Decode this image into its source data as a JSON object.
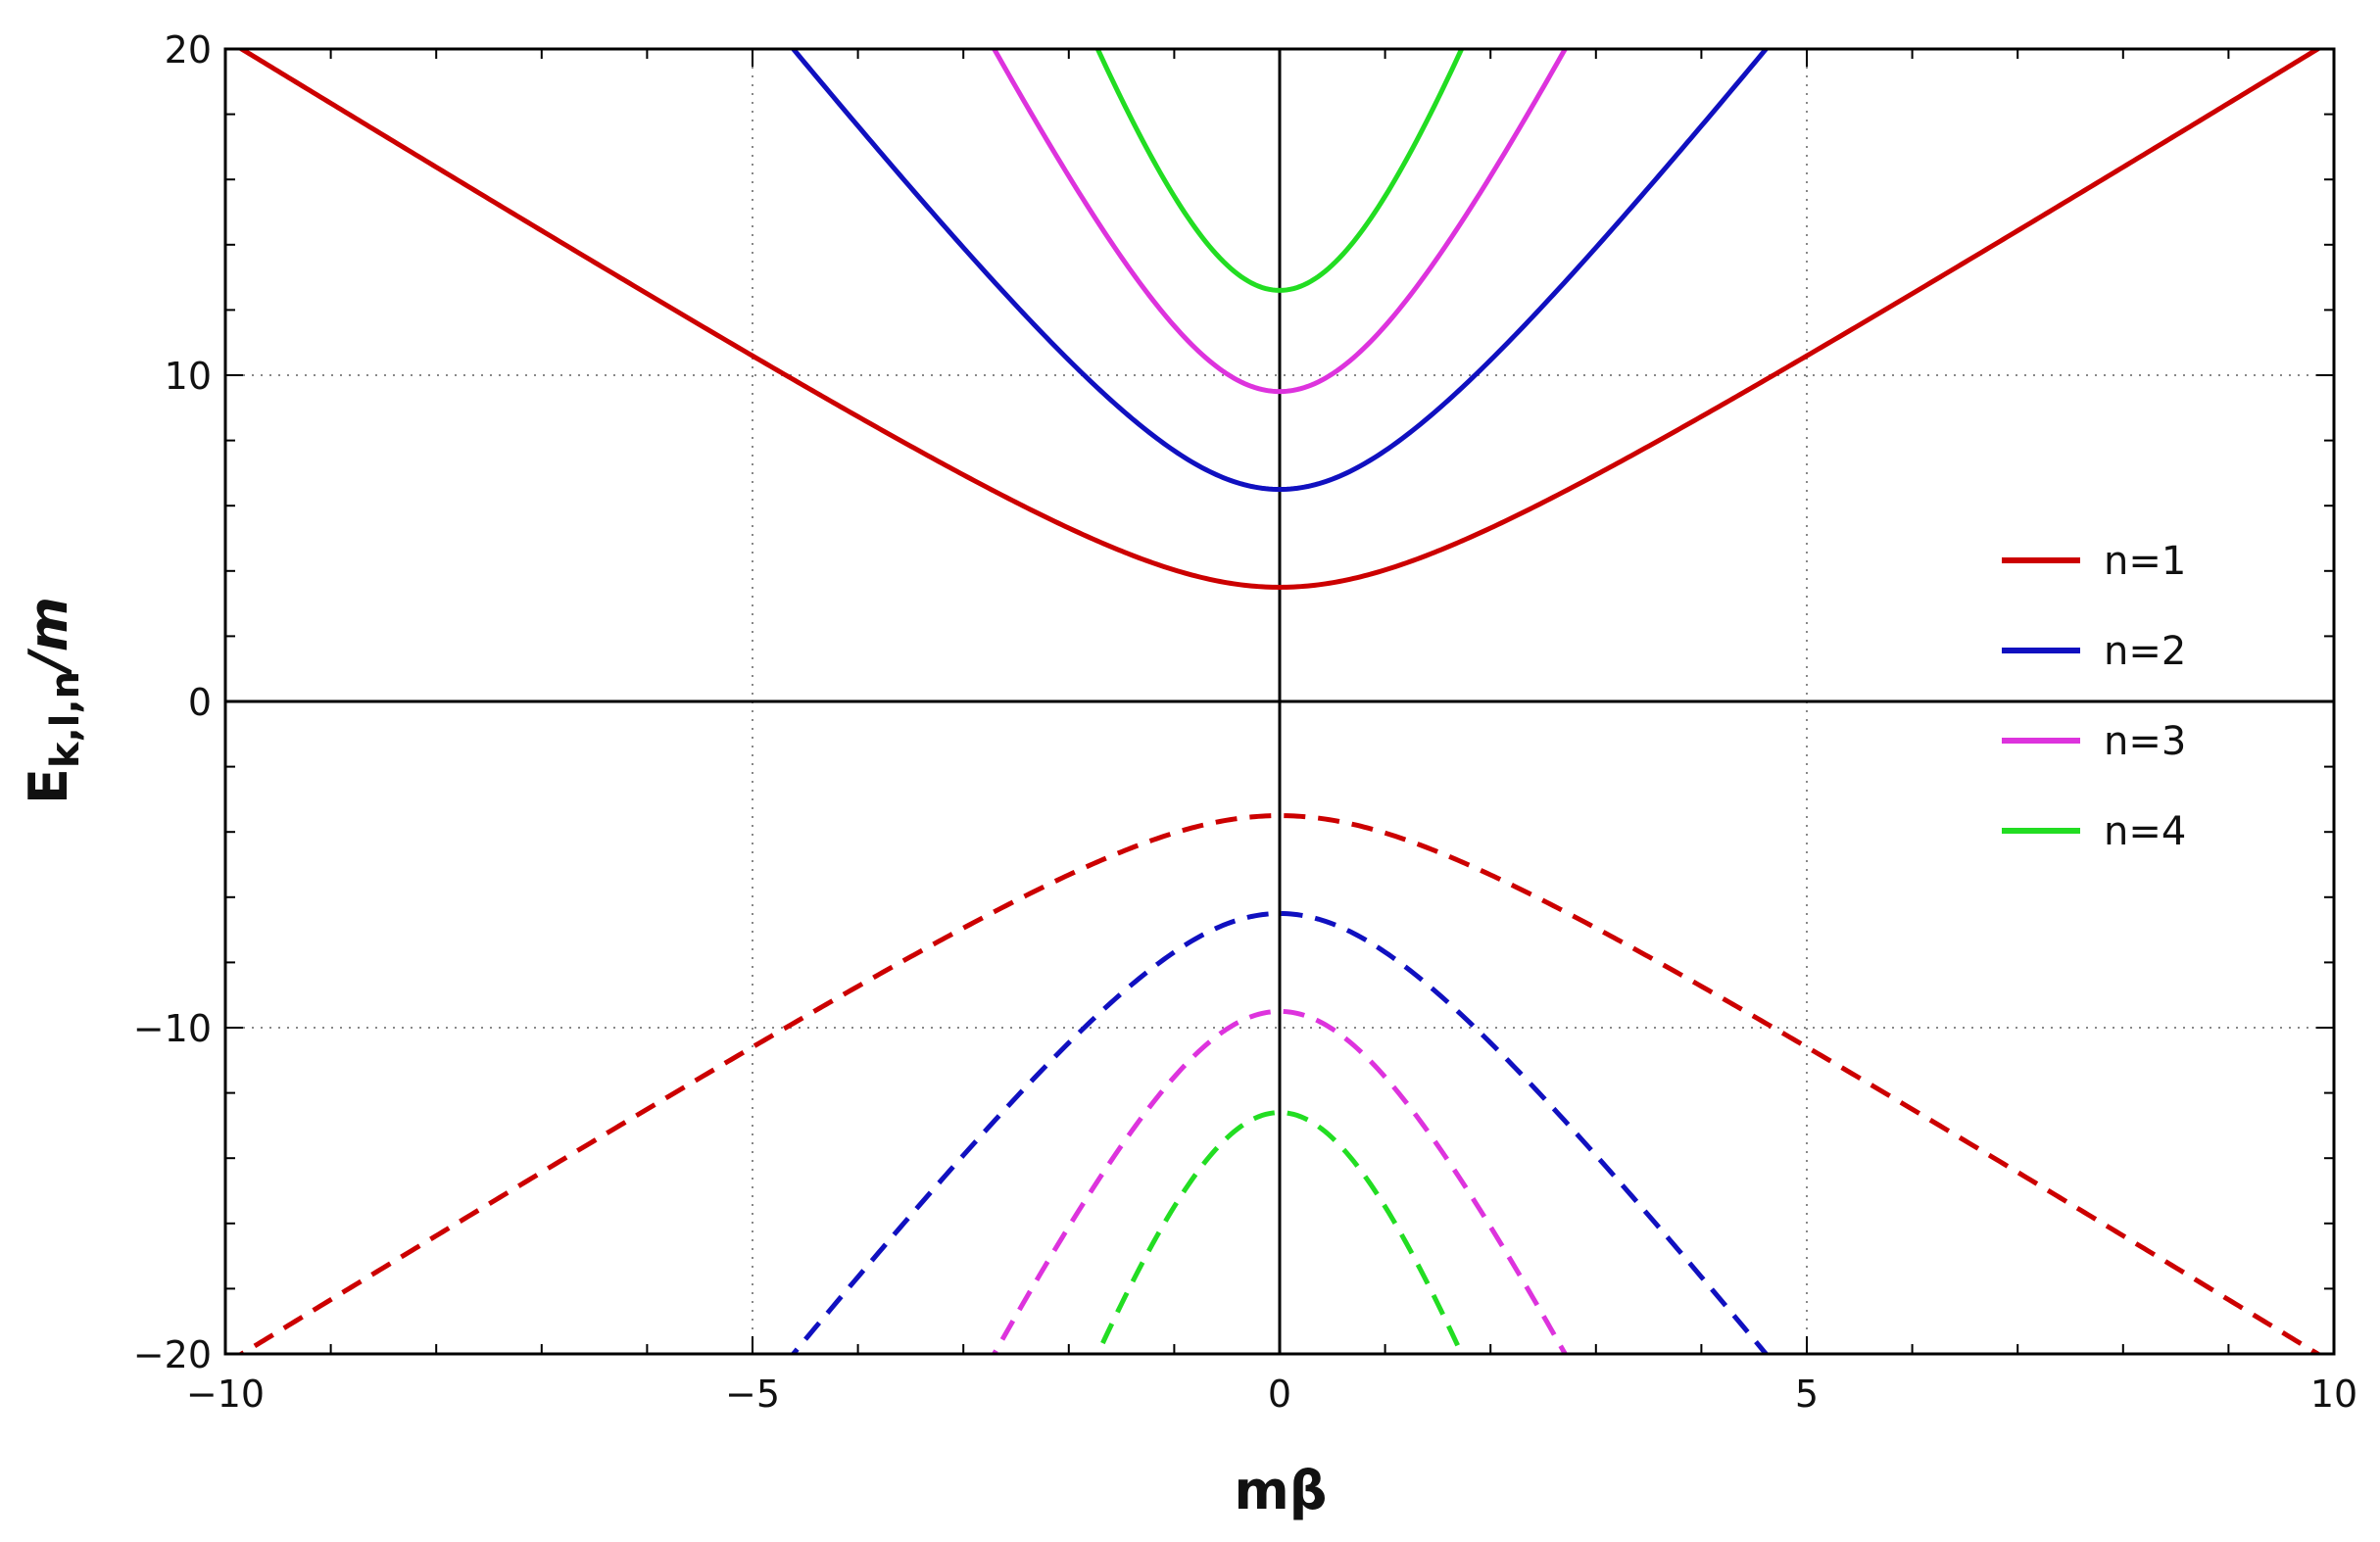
{
  "chart_data": {
    "type": "line",
    "title": "",
    "xlabel": "mβ",
    "ylabel": {
      "main": "E",
      "sub": "k,l,n",
      "tail": "/m"
    },
    "xlim": [
      -10,
      10
    ],
    "ylim": [
      -20,
      20
    ],
    "x_ticks": [
      -10,
      -5,
      0,
      5,
      10
    ],
    "x_tick_labels": [
      "−10",
      "−5",
      "0",
      "5",
      "10"
    ],
    "y_ticks": [
      -20,
      -10,
      0,
      10,
      20
    ],
    "y_tick_labels": [
      "−20",
      "−10",
      "0",
      "10",
      "20"
    ],
    "grid": "dotted",
    "legend_position": "right",
    "series": [
      {
        "name": "n=1",
        "color": "#cc0000",
        "min_energy": 3.5,
        "slope": 2.0,
        "x": [
          -10,
          -7.5,
          -5,
          -2.5,
          0,
          2.5,
          5,
          7.5,
          10
        ],
        "y_upper": [
          20.3,
          15.4,
          10.6,
          6.1,
          3.5,
          6.1,
          10.6,
          15.4,
          20.3
        ],
        "y_lower": [
          -20.3,
          -15.4,
          -10.6,
          -6.1,
          -3.5,
          -6.1,
          -10.6,
          -15.4,
          -20.3
        ]
      },
      {
        "name": "n=2",
        "color": "#1010c0",
        "min_energy": 6.5,
        "slope": 4.1,
        "x": [
          -4.5,
          -3,
          -1.5,
          0,
          1.5,
          3,
          4.5
        ],
        "y_upper": [
          20.0,
          14.0,
          9.0,
          6.5,
          9.0,
          14.0,
          20.0
        ],
        "y_lower": [
          -20.0,
          -14.0,
          -9.0,
          -6.5,
          -9.0,
          -14.0,
          -20.0
        ]
      },
      {
        "name": "n=3",
        "color": "#dd33dd",
        "min_energy": 9.5,
        "slope": 6.5,
        "x": [
          -2.78,
          -1.5,
          0,
          1.5,
          2.78
        ],
        "y_upper": [
          20.0,
          13.5,
          9.5,
          13.5,
          20.0
        ],
        "y_lower": [
          -20.0,
          -13.5,
          -9.5,
          -13.5,
          -20.0
        ]
      },
      {
        "name": "n=4",
        "color": "#22dd22",
        "min_energy": 12.6,
        "slope": 9.0,
        "x": [
          -1.8,
          -1,
          0,
          1,
          1.8
        ],
        "y_upper": [
          20.0,
          15.5,
          12.6,
          15.5,
          20.0
        ],
        "y_lower": [
          -20.0,
          -15.5,
          -12.6,
          -15.5,
          -20.0
        ]
      }
    ]
  }
}
